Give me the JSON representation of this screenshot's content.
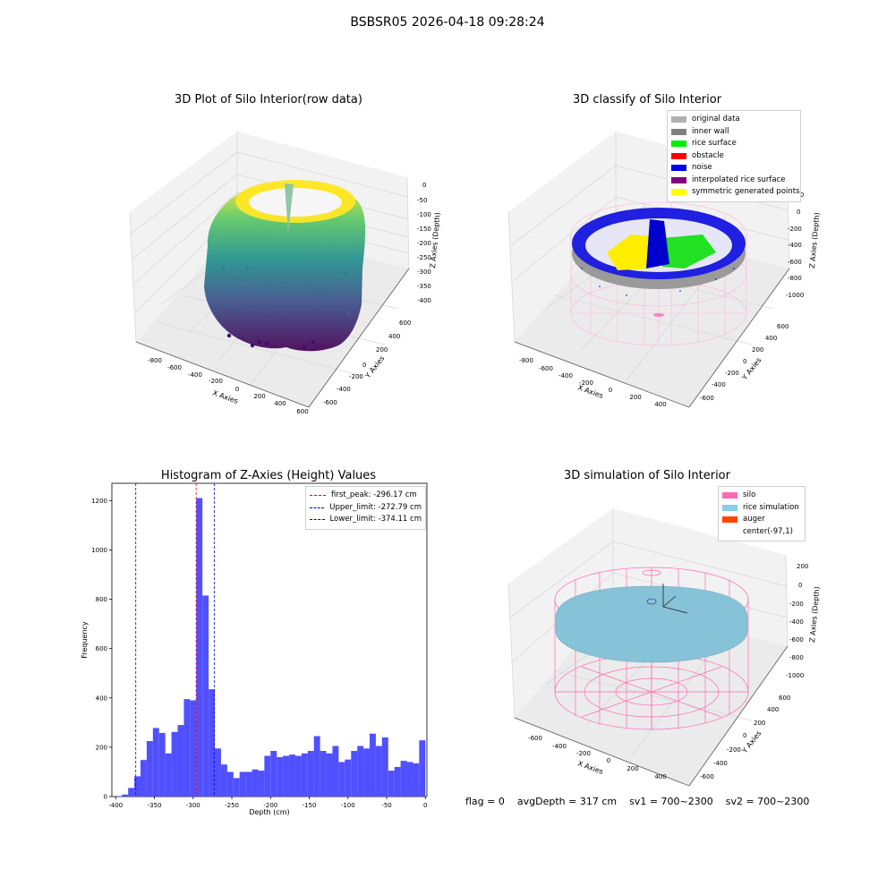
{
  "suptitle": "BSBSR05 2026-04-18 09:28:24",
  "panels": {
    "raw": {
      "title": "3D Plot of Silo Interior(row data)",
      "xlabel": "X Axies",
      "ylabel": "Y Axies",
      "zlabel": "Z Axies (Depth)",
      "xticks": [
        "-800",
        "-600",
        "-400",
        "-200",
        "0",
        "200",
        "400",
        "600"
      ],
      "yticks": [
        "600",
        "400",
        "200",
        "0",
        "-200",
        "-400",
        "-600"
      ],
      "zticks": [
        "0",
        "-50",
        "-100",
        "-150",
        "-200",
        "-250",
        "-300",
        "-350",
        "-400"
      ]
    },
    "classify": {
      "title": "3D classify of Silo Interior",
      "xlabel": "X Axies",
      "ylabel": "Y Axies",
      "zlabel": "Z Axies (Depth)",
      "xticks": [
        "-800",
        "-600",
        "-400",
        "-200",
        "0",
        "200",
        "400"
      ],
      "yticks": [
        "600",
        "400",
        "200",
        "0",
        "-200",
        "-400",
        "-600"
      ],
      "zticks": [
        "200",
        "0",
        "-200",
        "-400",
        "-600",
        "-800",
        "-1000"
      ]
    },
    "simulation": {
      "title": "3D simulation of Silo Interior",
      "xlabel": "X Axies",
      "ylabel": "Y Axies",
      "zlabel": "Z Axies (Depth)",
      "xticks": [
        "-600",
        "-400",
        "-200",
        "0",
        "200",
        "400"
      ],
      "yticks": [
        "600",
        "400",
        "200",
        "0",
        "-200",
        "-400",
        "-600"
      ],
      "zticks": [
        "200",
        "0",
        "-200",
        "-400",
        "-600",
        "-800",
        "-1000"
      ]
    }
  },
  "legends": {
    "classify": [
      {
        "label": "original data",
        "color": "#b0b0b0"
      },
      {
        "label": "inner wall",
        "color": "#808080"
      },
      {
        "label": "rice surface",
        "color": "#00ee00"
      },
      {
        "label": "obstacle",
        "color": "#ff0000"
      },
      {
        "label": "noise",
        "color": "#0000ee"
      },
      {
        "label": "interpolated rice surface",
        "color": "#800080"
      },
      {
        "label": "symmetric generated points",
        "color": "#ffff00"
      }
    ],
    "simulation": [
      {
        "label": "silo",
        "color": "#ff69b4"
      },
      {
        "label": "rice simulation",
        "color": "#87ceeb"
      },
      {
        "label": "auger",
        "color": "#ff4500"
      },
      {
        "label": "center(-97,1)",
        "color": "#ffffff"
      }
    ]
  },
  "status": {
    "flag": "flag = 0",
    "avg_depth": "avgDepth = 317 cm",
    "sv1": "sv1 = 700~2300",
    "sv2": "sv2 = 700~2300"
  },
  "chart_data": {
    "type": "bar",
    "title": "Histogram of Z-Axies (Height) Values",
    "xlabel": "Depth (cm)",
    "ylabel": "Frequency",
    "xlim": [
      -405,
      2
    ],
    "ylim": [
      0,
      1270
    ],
    "xticks": [
      -400,
      -350,
      -300,
      -250,
      -200,
      -150,
      -100,
      -50,
      0
    ],
    "yticks": [
      0,
      200,
      400,
      600,
      800,
      1000,
      1200
    ],
    "bin_width": 8,
    "bin_starts": [
      -400,
      -392,
      -384,
      -376,
      -368,
      -360,
      -352,
      -344,
      -336,
      -328,
      -320,
      -312,
      -304,
      -296,
      -288,
      -280,
      -272,
      -264,
      -256,
      -248,
      -240,
      -232,
      -224,
      -216,
      -208,
      -200,
      -192,
      -184,
      -176,
      -168,
      -160,
      -152,
      -144,
      -136,
      -128,
      -120,
      -112,
      -104,
      -96,
      -88,
      -80,
      -72,
      -64,
      -56,
      -48,
      -40,
      -32,
      -24,
      -16,
      -8
    ],
    "values": [
      2,
      8,
      35,
      82,
      148,
      225,
      278,
      258,
      175,
      262,
      290,
      395,
      390,
      1210,
      815,
      435,
      195,
      130,
      100,
      75,
      100,
      100,
      110,
      105,
      165,
      185,
      160,
      165,
      170,
      165,
      175,
      185,
      245,
      185,
      175,
      205,
      140,
      150,
      185,
      205,
      195,
      255,
      205,
      240,
      105,
      120,
      145,
      140,
      135,
      228
    ],
    "vlines": [
      {
        "label": "first_peak: -296.17 cm",
        "x": -296.17,
        "color": "#ff0000"
      },
      {
        "label": "Upper_limit: -272.79 cm",
        "x": -272.79,
        "color": "#0000cc"
      },
      {
        "label": "Lower_limit: -374.11 cm",
        "x": -374.11,
        "color": "#0000cc"
      }
    ],
    "bar_color": "#5050ff"
  }
}
